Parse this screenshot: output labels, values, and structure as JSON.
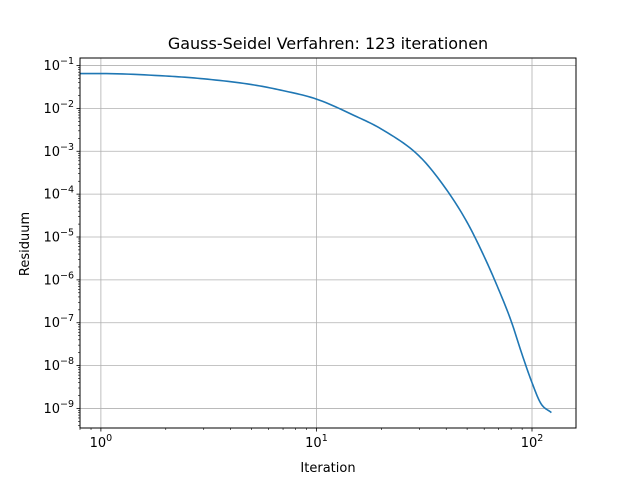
{
  "chart_data": {
    "type": "line",
    "title": "Gauss-Seidel Verfahren: 123 iterationen",
    "xlabel": "Iteration",
    "ylabel": "Residuum",
    "xscale": "log",
    "yscale": "log",
    "xlim": [
      0.8,
      160
    ],
    "ylim": [
      3.5e-10,
      0.15
    ],
    "grid": true,
    "x_ticks": [
      {
        "base": "10",
        "exp": "0",
        "value": 1
      },
      {
        "base": "10",
        "exp": "1",
        "value": 10
      },
      {
        "base": "10",
        "exp": "2",
        "value": 100
      }
    ],
    "y_ticks": [
      {
        "base": "10",
        "exp": "−1",
        "value": 0.1
      },
      {
        "base": "10",
        "exp": "−2",
        "value": 0.01
      },
      {
        "base": "10",
        "exp": "−3",
        "value": 0.001
      },
      {
        "base": "10",
        "exp": "−4",
        "value": 0.0001
      },
      {
        "base": "10",
        "exp": "−5",
        "value": 1e-05
      },
      {
        "base": "10",
        "exp": "−6",
        "value": 1e-06
      },
      {
        "base": "10",
        "exp": "−7",
        "value": 1e-07
      },
      {
        "base": "10",
        "exp": "−8",
        "value": 1e-08
      },
      {
        "base": "10",
        "exp": "−9",
        "value": 1e-09
      }
    ],
    "series": [
      {
        "color": "#1f77b4",
        "x": [
          0.8,
          1,
          2,
          3,
          5,
          7,
          10,
          15,
          20,
          30,
          40,
          50,
          60,
          70,
          80,
          90,
          100,
          110,
          123
        ],
        "y": [
          0.065,
          0.065,
          0.057,
          0.049,
          0.036,
          0.026,
          0.0165,
          0.0068,
          0.0033,
          0.00077,
          0.00013,
          2.2e-05,
          3.5e-06,
          6e-07,
          1.1e-07,
          1.8e-08,
          4e-09,
          1.3e-09,
          8e-10
        ]
      }
    ]
  }
}
